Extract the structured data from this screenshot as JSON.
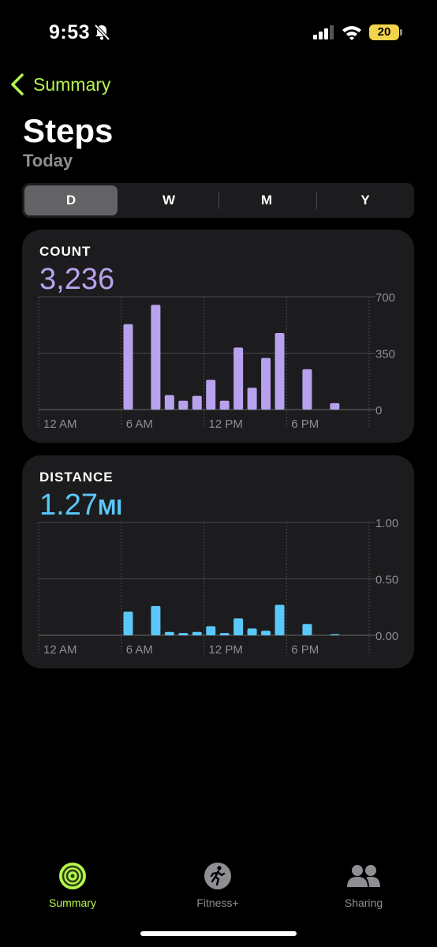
{
  "status": {
    "time": "9:53",
    "battery": "20"
  },
  "nav": {
    "back_label": "Summary"
  },
  "page": {
    "title": "Steps",
    "subtitle": "Today"
  },
  "segments": [
    "D",
    "W",
    "M",
    "Y"
  ],
  "count_card": {
    "label": "COUNT",
    "value": "3,236"
  },
  "distance_card": {
    "label": "DISTANCE",
    "value": "1.27",
    "unit": "MI"
  },
  "chart_data": [
    {
      "type": "bar",
      "title": "COUNT",
      "x_ticks": [
        "12 AM",
        "6 AM",
        "12 PM",
        "6 PM"
      ],
      "y_ticks": [
        "0",
        "350",
        "700"
      ],
      "ylim": [
        0,
        700
      ],
      "hours": [
        6,
        8,
        9,
        10,
        11,
        12,
        13,
        14,
        15,
        16,
        17,
        19,
        21
      ],
      "values": [
        530,
        650,
        90,
        55,
        85,
        185,
        55,
        385,
        135,
        320,
        475,
        250,
        40
      ],
      "color": "#b8a2ee"
    },
    {
      "type": "bar",
      "title": "DISTANCE",
      "x_ticks": [
        "12 AM",
        "6 AM",
        "12 PM",
        "6 PM"
      ],
      "y_ticks": [
        "0.00",
        "0.50",
        "1.00"
      ],
      "ylim": [
        0,
        1
      ],
      "hours": [
        6,
        8,
        9,
        10,
        11,
        12,
        13,
        14,
        15,
        16,
        17,
        19,
        21
      ],
      "values": [
        0.21,
        0.26,
        0.03,
        0.02,
        0.03,
        0.08,
        0.02,
        0.15,
        0.06,
        0.04,
        0.27,
        0.1,
        0.01
      ],
      "color": "#5ac8fa"
    }
  ],
  "tabs": [
    "Summary",
    "Fitness+",
    "Sharing"
  ],
  "colors": {
    "accent": "#b4f64d",
    "count": "#b8a2ee",
    "distance": "#5ac8fa"
  }
}
